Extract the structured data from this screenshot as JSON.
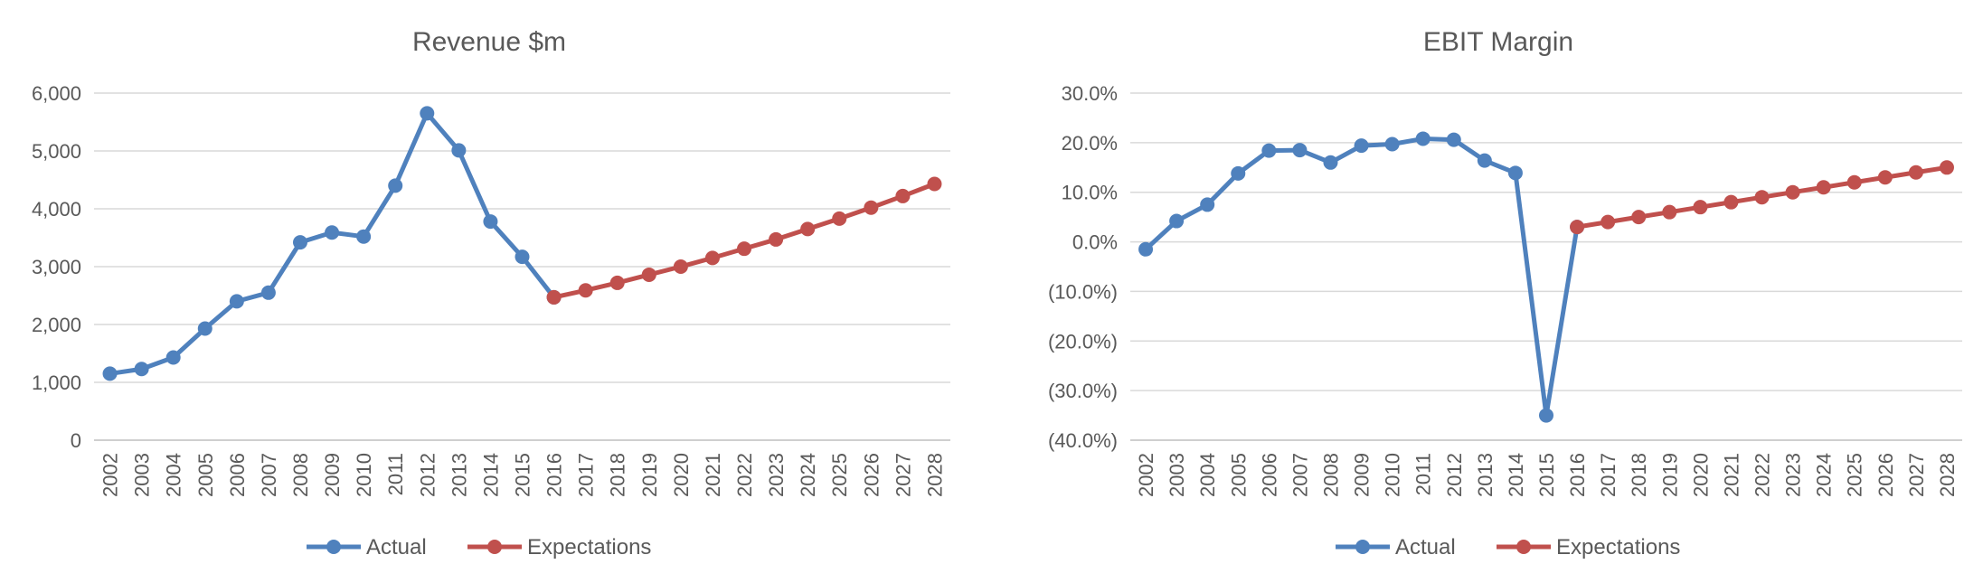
{
  "chart_data": [
    {
      "type": "line",
      "title": "Revenue $m",
      "xlabel": "",
      "ylabel": "",
      "categories": [
        "2002",
        "2003",
        "2004",
        "2005",
        "2006",
        "2007",
        "2008",
        "2009",
        "2010",
        "2011",
        "2012",
        "2013",
        "2014",
        "2015",
        "2016",
        "2017",
        "2018",
        "2019",
        "2020",
        "2021",
        "2022",
        "2023",
        "2024",
        "2025",
        "2026",
        "2027",
        "2028"
      ],
      "ylim": [
        0,
        6000
      ],
      "yticks": [
        0,
        1000,
        2000,
        3000,
        4000,
        5000,
        6000
      ],
      "ytick_labels": [
        "0",
        "1,000",
        "2,000",
        "3,000",
        "4,000",
        "5,000",
        "6,000"
      ],
      "grid": true,
      "legend_position": "bottom",
      "series": [
        {
          "name": "Actual",
          "color": "#4f81bd",
          "values": [
            1150,
            1230,
            1430,
            1930,
            2400,
            2550,
            3420,
            3590,
            3520,
            4400,
            5650,
            5010,
            3780,
            3170,
            2470,
            null,
            null,
            null,
            null,
            null,
            null,
            null,
            null,
            null,
            null,
            null,
            null
          ]
        },
        {
          "name": "Expectations",
          "color": "#c0504d",
          "values": [
            null,
            null,
            null,
            null,
            null,
            null,
            null,
            null,
            null,
            null,
            null,
            null,
            null,
            null,
            2470,
            2590,
            2720,
            2860,
            3000,
            3150,
            3310,
            3470,
            3650,
            3830,
            4020,
            4220,
            4430
          ]
        }
      ]
    },
    {
      "type": "line",
      "title": "EBIT Margin",
      "xlabel": "",
      "ylabel": "",
      "categories": [
        "2002",
        "2003",
        "2004",
        "2005",
        "2006",
        "2007",
        "2008",
        "2009",
        "2010",
        "2011",
        "2012",
        "2013",
        "2014",
        "2015",
        "2016",
        "2017",
        "2018",
        "2019",
        "2020",
        "2021",
        "2022",
        "2023",
        "2024",
        "2025",
        "2026",
        "2027",
        "2028"
      ],
      "ylim": [
        -40,
        30
      ],
      "yticks": [
        -40,
        -30,
        -20,
        -10,
        0,
        10,
        20,
        30
      ],
      "ytick_labels": [
        "(40.0%)",
        "(30.0%)",
        "(20.0%)",
        "(10.0%)",
        "0.0%",
        "10.0%",
        "20.0%",
        "30.0%"
      ],
      "grid": true,
      "legend_position": "bottom",
      "series": [
        {
          "name": "Actual",
          "color": "#4f81bd",
          "values": [
            -1.5,
            4.2,
            7.5,
            13.8,
            18.4,
            18.5,
            16.0,
            19.4,
            19.7,
            20.8,
            20.6,
            16.4,
            13.9,
            -35.0,
            3.0,
            null,
            null,
            null,
            null,
            null,
            null,
            null,
            null,
            null,
            null,
            null,
            null
          ]
        },
        {
          "name": "Expectations",
          "color": "#c0504d",
          "values": [
            null,
            null,
            null,
            null,
            null,
            null,
            null,
            null,
            null,
            null,
            null,
            null,
            null,
            null,
            3.0,
            4.0,
            5.0,
            6.0,
            7.0,
            8.0,
            9.0,
            10.0,
            11.0,
            12.0,
            13.0,
            14.0,
            15.0
          ]
        }
      ]
    }
  ]
}
